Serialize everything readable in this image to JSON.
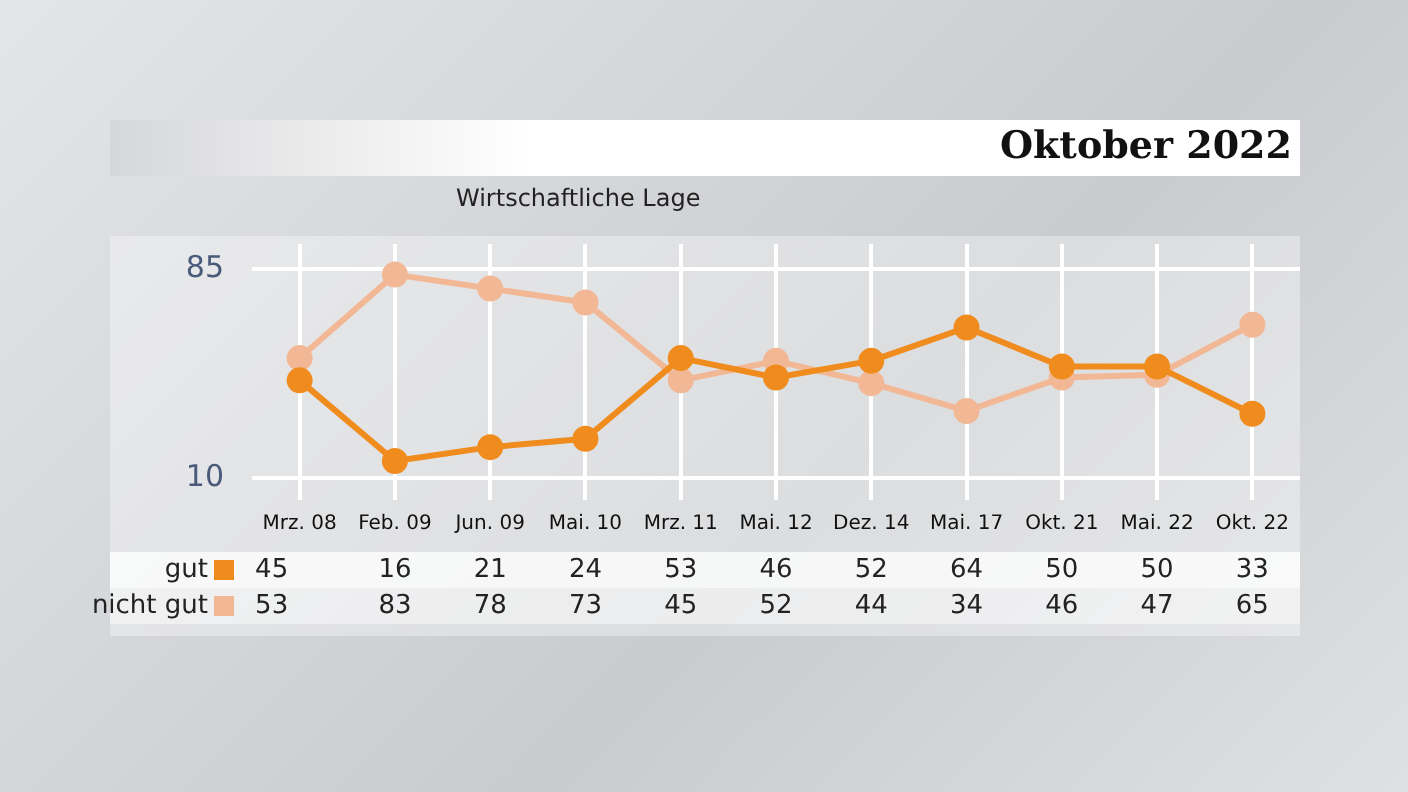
{
  "chart_data": {
    "type": "line",
    "title": "Oktober 2022",
    "subtitle": "Wirtschaftliche Lage",
    "categories": [
      "Mrz. 08",
      "Feb. 09",
      "Jun. 09",
      "Mai. 10",
      "Mrz. 11",
      "Mai. 12",
      "Dez. 14",
      "Mai. 17",
      "Okt. 21",
      "Mai. 22",
      "Okt. 22"
    ],
    "series": [
      {
        "name": "gut",
        "color": "#f08c1e",
        "values": [
          45,
          16,
          21,
          24,
          53,
          46,
          52,
          64,
          50,
          50,
          33
        ]
      },
      {
        "name": "nicht gut",
        "color": "#f2b896",
        "values": [
          53,
          83,
          78,
          73,
          45,
          52,
          44,
          34,
          46,
          47,
          65
        ]
      }
    ],
    "ylim": [
      2,
      94
    ],
    "yticks": [
      10,
      85
    ],
    "grid": true,
    "legend": "bottom left",
    "marker": "circle",
    "line_style": "solid",
    "data_labels": true
  }
}
